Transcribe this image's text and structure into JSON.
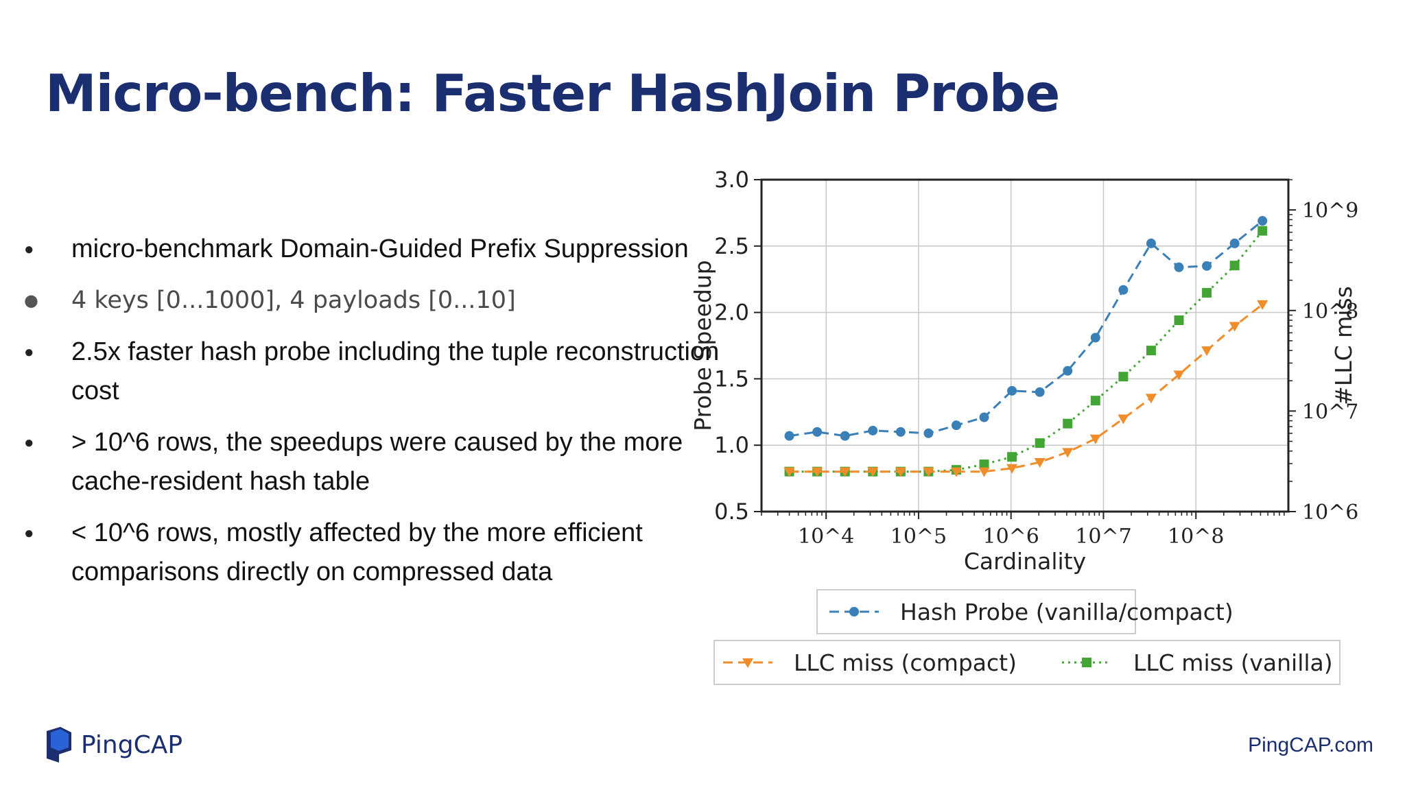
{
  "slide": {
    "title": "Micro-bench: Faster HashJoin Probe",
    "bullets": [
      "micro-benchmark Domain-Guided Prefix Suppression",
      "4 keys [0...1000], 4 payloads [0...10]",
      "2.5x faster hash probe including the tuple reconstruction cost",
      "> 10^6 rows, the speedups were caused by the more cache-resident hash table",
      "< 10^6 rows, mostly affected by the more efficient comparisons directly on compressed data"
    ]
  },
  "footer": {
    "logo_text": "PingCAP",
    "link": "PingCAP.com",
    "brand_color": "#1b2e6f"
  },
  "chart_data": {
    "type": "line",
    "xlabel": "Cardinality",
    "ylabel": "Probe Speedup",
    "y2label": "#LLC miss",
    "x_scale": "log",
    "y2_scale": "log",
    "xlim": [
      2000,
      1000000000
    ],
    "ylim": [
      0.5,
      3.0
    ],
    "y2lim": [
      1000000,
      2000000000
    ],
    "x_ticks": [
      {
        "value": 10000,
        "label": "10^4"
      },
      {
        "value": 100000,
        "label": "10^5"
      },
      {
        "value": 1000000,
        "label": "10^6"
      },
      {
        "value": 10000000,
        "label": "10^7"
      },
      {
        "value": 100000000,
        "label": "10^8"
      }
    ],
    "y_ticks": [
      "0.5",
      "1.0",
      "1.5",
      "2.0",
      "2.5",
      "3.0"
    ],
    "y2_ticks": [
      {
        "value": 1000000,
        "label": "10^6"
      },
      {
        "value": 10000000,
        "label": "10^7"
      },
      {
        "value": 100000000,
        "label": "10^8"
      },
      {
        "value": 1000000000,
        "label": "10^9"
      }
    ],
    "grid": true,
    "legend_placement": "bottom",
    "x": [
      4000,
      8000,
      16000,
      32000,
      64000,
      128000,
      256000,
      512000,
      1024000,
      2048000,
      4096000,
      8192000,
      16384000,
      32768000,
      65536000,
      131072000,
      262144000,
      524288000
    ],
    "series": [
      {
        "name": "Hash Probe (vanilla/compact)",
        "axis": "left",
        "color": "#3a7fb6",
        "marker": "circle",
        "line": "dashed",
        "values": [
          1.07,
          1.1,
          1.07,
          1.11,
          1.1,
          1.09,
          1.15,
          1.21,
          1.41,
          1.4,
          1.56,
          1.81,
          2.17,
          2.52,
          2.34,
          2.35,
          2.52,
          2.69
        ]
      },
      {
        "name": "LLC miss (compact)",
        "axis": "right",
        "color": "#f08c2a",
        "marker": "triangle-down",
        "line": "dashed",
        "values": [
          2500000,
          2500000,
          2500000,
          2500000,
          2500000,
          2500000,
          2500000,
          2500000,
          2700000,
          3100000,
          3900000,
          5300000,
          8400000,
          13500000,
          23000000,
          40000000,
          70000000,
          115000000
        ]
      },
      {
        "name": "LLC miss (vanilla)",
        "axis": "right",
        "color": "#42a535",
        "marker": "square",
        "line": "dotted",
        "values": [
          2500000,
          2500000,
          2500000,
          2500000,
          2500000,
          2500000,
          2600000,
          2950000,
          3500000,
          4800000,
          7500000,
          12700000,
          22000000,
          40000000,
          80000000,
          150000000,
          280000000,
          620000000
        ]
      }
    ]
  }
}
